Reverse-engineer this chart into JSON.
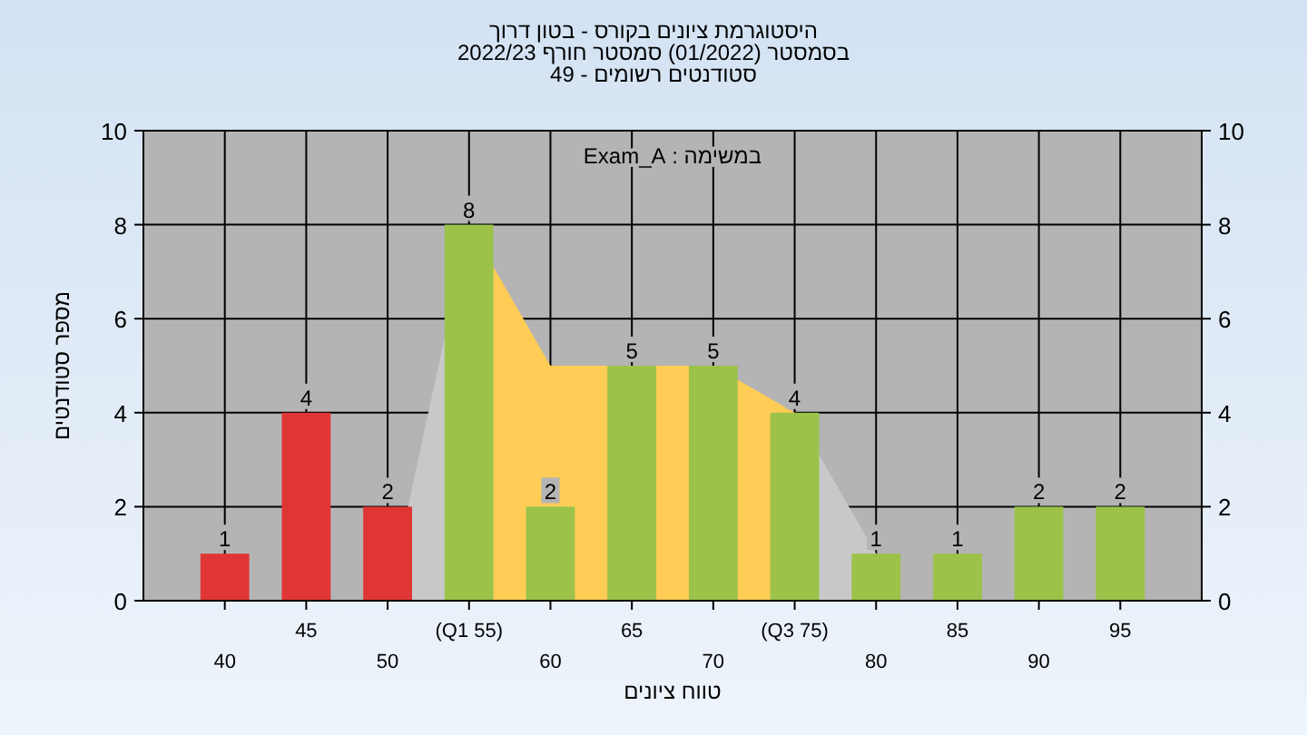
{
  "chart_data": {
    "type": "bar",
    "title": "היסטוגרמת ציונים בקורס - בטון דרוך",
    "subtitle": "בסמסטר  (01/2022)  סמסטר חורף 2022/23\nסטודנטים רשומים - 49",
    "xlabel": "טווח ציונים",
    "ylabel": "מספר סטודנטים",
    "annotations": [
      "במשימה : Exam_A"
    ],
    "categories": [
      "40",
      "45",
      "50",
      "(Q1 55)",
      "60",
      "65",
      "70",
      "(Q3 75)",
      "80",
      "85",
      "90",
      "95"
    ],
    "series": [
      {
        "type": "area",
        "color": "#c8c8c8",
        "values": [
          null,
          null,
          0,
          8,
          null,
          null,
          null,
          null,
          null,
          null,
          null,
          null
        ]
      },
      {
        "type": "area",
        "color": "#c8c8c8",
        "values": [
          null,
          null,
          null,
          null,
          null,
          null,
          null,
          4,
          1,
          null,
          null,
          null
        ]
      },
      {
        "type": "area",
        "color": "#ffcc55",
        "values": [
          null,
          null,
          null,
          8,
          5,
          null,
          5,
          4,
          null,
          null,
          null,
          null
        ]
      },
      {
        "colors": [
          "#e03535",
          "#e03535",
          "#e03535",
          "#9cc24a",
          "#9cc24a",
          "#9cc24a",
          "#9cc24a",
          "#9cc24a",
          "#9cc24a",
          "#9cc24a",
          "#9cc24a",
          "#9cc24a"
        ],
        "values": [
          1,
          4,
          2,
          8,
          2,
          5,
          5,
          4,
          1,
          1,
          2,
          2
        ],
        "data_labels": true
      }
    ],
    "ylim": [
      0,
      10
    ],
    "yticks": [
      0,
      2,
      4,
      6,
      8,
      10
    ],
    "y2lim": [
      0,
      10
    ],
    "y2ticks": [
      0,
      2,
      4,
      6,
      8,
      10
    ],
    "grid": true
  }
}
